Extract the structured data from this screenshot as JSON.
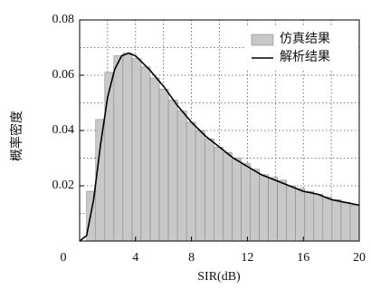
{
  "chart_data": {
    "type": "histogram",
    "xlabel": "SIR(dB)",
    "ylabel": "概率密度",
    "bins": [
      0.5,
      1.15,
      1.8,
      2.45,
      3.1,
      3.75,
      4.4,
      5.05,
      5.7,
      6.35,
      7,
      7.65,
      8.3,
      8.95,
      9.6,
      10.25,
      10.9,
      11.55,
      12.2,
      12.85,
      13.5,
      14.15,
      14.8,
      15.45,
      16.1,
      16.75,
      17.4,
      18.05,
      18.7,
      19.35,
      20
    ],
    "series": [
      {
        "name": "仿真结果",
        "type": "histogram",
        "color": "#c8c8c8",
        "values": [
          0.018,
          0.044,
          0.061,
          0.067,
          0.068,
          0.066,
          0.063,
          0.059,
          0.055,
          0.051,
          0.047,
          0.043,
          0.04,
          0.037,
          0.034,
          0.032,
          0.03,
          0.028,
          0.026,
          0.024,
          0.023,
          0.022,
          0.02,
          0.019,
          0.018,
          0.017,
          0.016,
          0.015,
          0.014,
          0.013
        ]
      },
      {
        "name": "解析结果",
        "type": "line",
        "color": "#000000",
        "x": [
          0,
          0.5,
          1,
          1.5,
          2,
          2.5,
          3,
          3.5,
          4,
          5,
          6,
          7,
          8,
          9,
          10,
          11,
          12,
          13,
          14,
          15,
          16,
          17,
          18,
          19,
          20
        ],
        "values": [
          0,
          0.002,
          0.015,
          0.035,
          0.052,
          0.062,
          0.067,
          0.068,
          0.067,
          0.062,
          0.056,
          0.049,
          0.043,
          0.038,
          0.034,
          0.03,
          0.027,
          0.024,
          0.022,
          0.02,
          0.018,
          0.017,
          0.015,
          0.014,
          0.013
        ]
      }
    ],
    "xlim": [
      0,
      20
    ],
    "ylim": [
      0,
      0.08
    ],
    "xticks": [
      0,
      4,
      8,
      12,
      16,
      20
    ],
    "yticks": [
      0.02,
      0.04,
      0.06,
      0.08
    ],
    "x_minor_ticks": [
      2,
      6,
      10,
      14,
      18
    ],
    "y_minor_ticks": [
      0.01,
      0.03,
      0.05,
      0.07
    ],
    "grid": true,
    "legend": "upper right"
  }
}
